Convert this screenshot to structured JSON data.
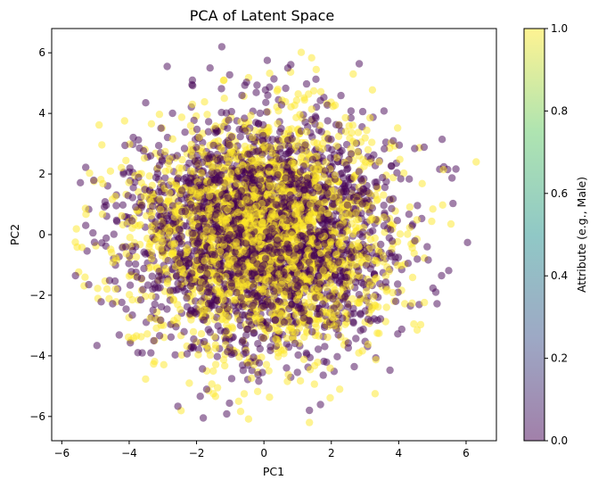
{
  "chart_data": {
    "type": "scatter",
    "title": "PCA of Latent Space",
    "xlabel": "PC1",
    "ylabel": "PC2",
    "xlim": [
      -6.3,
      6.9
    ],
    "ylim": [
      -6.8,
      6.8
    ],
    "xticks": [
      -6,
      -4,
      -2,
      0,
      2,
      4,
      6
    ],
    "yticks": [
      -6,
      -4,
      -2,
      0,
      2,
      4,
      6
    ],
    "grid": false,
    "colormap": "viridis",
    "point_alpha": 0.5,
    "colorbar": {
      "label": "Attribute (e.g., Male)",
      "range": [
        0.0,
        1.0
      ],
      "ticks": [
        "0.0",
        "0.2",
        "0.4",
        "0.6",
        "0.8",
        "1.0"
      ],
      "colors": {
        "0.00": "#440154",
        "0.25": "#3b528b",
        "0.50": "#21918c",
        "0.75": "#5ec962",
        "1.00": "#fde725"
      }
    },
    "point_count_estimate": 5000,
    "distribution_estimate": {
      "shape": "roughly circular 2D Gaussian cloud centered near the origin",
      "pc1_mean": 0.0,
      "pc1_std": 1.9,
      "pc2_mean": 0.0,
      "pc2_std": 1.85,
      "attribute_values": [
        0,
        1
      ],
      "attribute_1_share": 0.5,
      "observed_extremes": {
        "pc1_min": -5.6,
        "pc1_max": 6.3,
        "pc2_min": -6.2,
        "pc2_max": 6.2
      }
    },
    "representative_points": [
      {
        "x": -1.25,
        "y": 6.2,
        "attr": 0
      },
      {
        "x": 0.1,
        "y": 5.75,
        "attr": 0
      },
      {
        "x": -1.6,
        "y": 5.5,
        "attr": 0
      },
      {
        "x": 1.55,
        "y": 5.45,
        "attr": 1
      },
      {
        "x": 2.65,
        "y": 5.3,
        "attr": 1
      },
      {
        "x": 6.3,
        "y": 2.4,
        "attr": 1
      },
      {
        "x": 5.55,
        "y": 0.35,
        "attr": 1
      },
      {
        "x": -5.6,
        "y": -0.25,
        "attr": 1
      },
      {
        "x": -5.2,
        "y": -1.65,
        "attr": 0
      },
      {
        "x": 5.1,
        "y": -1.9,
        "attr": 0
      },
      {
        "x": 4.45,
        "y": -2.95,
        "attr": 1
      },
      {
        "x": -1.8,
        "y": -6.05,
        "attr": 0
      },
      {
        "x": 1.35,
        "y": -6.2,
        "attr": 1
      },
      {
        "x": 1.35,
        "y": -5.8,
        "attr": 0
      },
      {
        "x": -1.7,
        "y": -5.1,
        "attr": 0
      },
      {
        "x": -1.5,
        "y": -5.25,
        "attr": 1
      },
      {
        "x": -0.75,
        "y": -5.5,
        "attr": 1
      },
      {
        "x": 2.25,
        "y": -5.1,
        "attr": 1
      },
      {
        "x": 3.3,
        "y": -5.25,
        "attr": 1
      }
    ]
  }
}
